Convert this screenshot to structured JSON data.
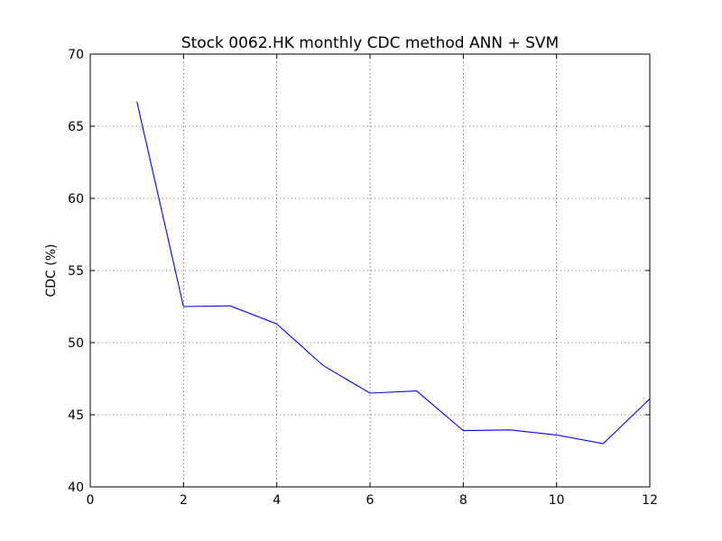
{
  "chart_data": {
    "type": "line",
    "title": "Stock 0062.HK monthly CDC method ANN + SVM",
    "xlabel": "",
    "ylabel": "CDC (%)",
    "xlim": [
      0,
      12
    ],
    "ylim": [
      40,
      70
    ],
    "xticks": [
      0,
      2,
      4,
      6,
      8,
      10,
      12
    ],
    "yticks": [
      40,
      45,
      50,
      55,
      60,
      65,
      70
    ],
    "grid": true,
    "series": [
      {
        "color": "#0000ff",
        "x": [
          1,
          2,
          3,
          4,
          5,
          6,
          7,
          8,
          9,
          10,
          11,
          12
        ],
        "y": [
          66.7,
          52.5,
          52.55,
          51.3,
          48.4,
          46.5,
          46.65,
          43.9,
          43.95,
          43.6,
          43.0,
          46.1
        ]
      }
    ]
  }
}
